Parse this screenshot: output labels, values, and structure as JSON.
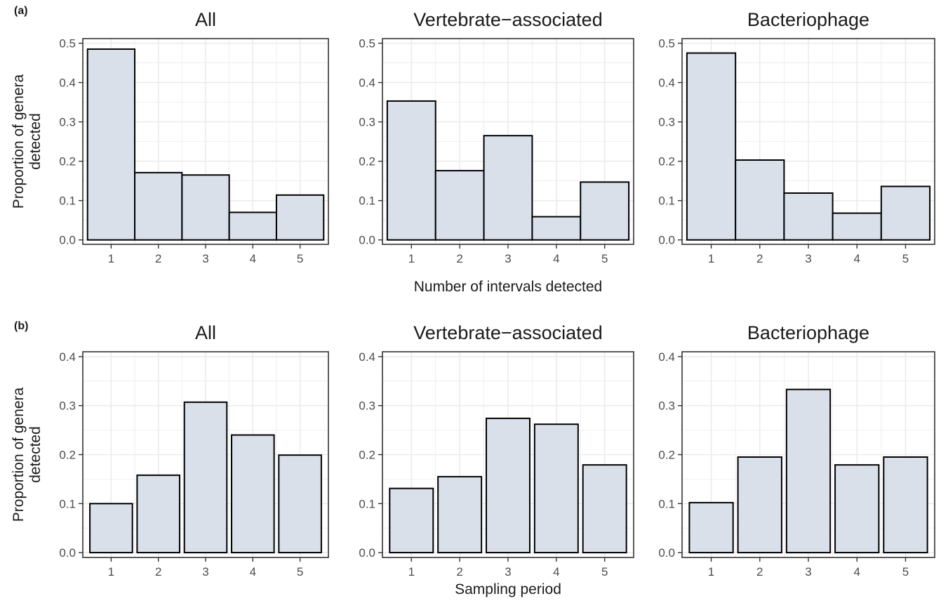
{
  "figure": {
    "rows": [
      {
        "tag": "(a)",
        "ylabel": "Proportion of genera detected",
        "ylabel_lines": [
          "Proportion of genera",
          "detected"
        ],
        "xlabel": "Number of intervals detected"
      },
      {
        "tag": "(b)",
        "ylabel": "Proportion of genera detected",
        "ylabel_lines": [
          "Proportion of genera",
          "detected"
        ],
        "xlabel": "Sampling period"
      }
    ],
    "colors": {
      "bar_fill": "#d9e0ea",
      "bar_stroke": "#000000",
      "grid": "#ebebeb",
      "panel_border": "#333333",
      "text": "#1a1a1a",
      "tick_text": "#4d4d4d"
    }
  },
  "chart_data": [
    {
      "type": "bar",
      "row": 0,
      "col": 0,
      "title": "All",
      "categories": [
        "1",
        "2",
        "3",
        "4",
        "5"
      ],
      "values": [
        0.485,
        0.171,
        0.165,
        0.07,
        0.114
      ],
      "ylim": [
        0,
        0.5
      ],
      "yticks": [
        0.0,
        0.1,
        0.2,
        0.3,
        0.4,
        0.5
      ],
      "ytick_labels": [
        "0.0",
        "0.1",
        "0.2",
        "0.3",
        "0.4",
        "0.5"
      ],
      "bar_width": 1.0,
      "grid": true
    },
    {
      "type": "bar",
      "row": 0,
      "col": 1,
      "title": "Vertebrate−associated",
      "categories": [
        "1",
        "2",
        "3",
        "4",
        "5"
      ],
      "values": [
        0.353,
        0.176,
        0.265,
        0.059,
        0.147
      ],
      "ylim": [
        0,
        0.5
      ],
      "yticks": [
        0.0,
        0.1,
        0.2,
        0.3,
        0.4,
        0.5
      ],
      "ytick_labels": [
        "0.0",
        "0.1",
        "0.2",
        "0.3",
        "0.4",
        "0.5"
      ],
      "bar_width": 1.0,
      "grid": true
    },
    {
      "type": "bar",
      "row": 0,
      "col": 2,
      "title": "Bacteriophage",
      "categories": [
        "1",
        "2",
        "3",
        "4",
        "5"
      ],
      "values": [
        0.475,
        0.203,
        0.119,
        0.068,
        0.136
      ],
      "ylim": [
        0,
        0.5
      ],
      "yticks": [
        0.0,
        0.1,
        0.2,
        0.3,
        0.4,
        0.5
      ],
      "ytick_labels": [
        "0.0",
        "0.1",
        "0.2",
        "0.3",
        "0.4",
        "0.5"
      ],
      "bar_width": 1.0,
      "grid": true
    },
    {
      "type": "bar",
      "row": 1,
      "col": 0,
      "title": "All",
      "categories": [
        "1",
        "2",
        "3",
        "4",
        "5"
      ],
      "values": [
        0.1,
        0.158,
        0.307,
        0.24,
        0.199
      ],
      "ylim": [
        0,
        0.4
      ],
      "yticks": [
        0.0,
        0.1,
        0.2,
        0.3,
        0.4
      ],
      "ytick_labels": [
        "0.0",
        "0.1",
        "0.2",
        "0.3",
        "0.4"
      ],
      "bar_width": 0.9,
      "grid": true
    },
    {
      "type": "bar",
      "row": 1,
      "col": 1,
      "title": "Vertebrate−associated",
      "categories": [
        "1",
        "2",
        "3",
        "4",
        "5"
      ],
      "values": [
        0.131,
        0.155,
        0.274,
        0.262,
        0.179
      ],
      "ylim": [
        0,
        0.4
      ],
      "yticks": [
        0.0,
        0.1,
        0.2,
        0.3,
        0.4
      ],
      "ytick_labels": [
        "0.0",
        "0.1",
        "0.2",
        "0.3",
        "0.4"
      ],
      "bar_width": 0.9,
      "grid": true
    },
    {
      "type": "bar",
      "row": 1,
      "col": 2,
      "title": "Bacteriophage",
      "categories": [
        "1",
        "2",
        "3",
        "4",
        "5"
      ],
      "values": [
        0.102,
        0.195,
        0.333,
        0.179,
        0.195
      ],
      "ylim": [
        0,
        0.4
      ],
      "yticks": [
        0.0,
        0.1,
        0.2,
        0.3,
        0.4
      ],
      "ytick_labels": [
        "0.0",
        "0.1",
        "0.2",
        "0.3",
        "0.4"
      ],
      "bar_width": 0.9,
      "grid": true
    }
  ]
}
